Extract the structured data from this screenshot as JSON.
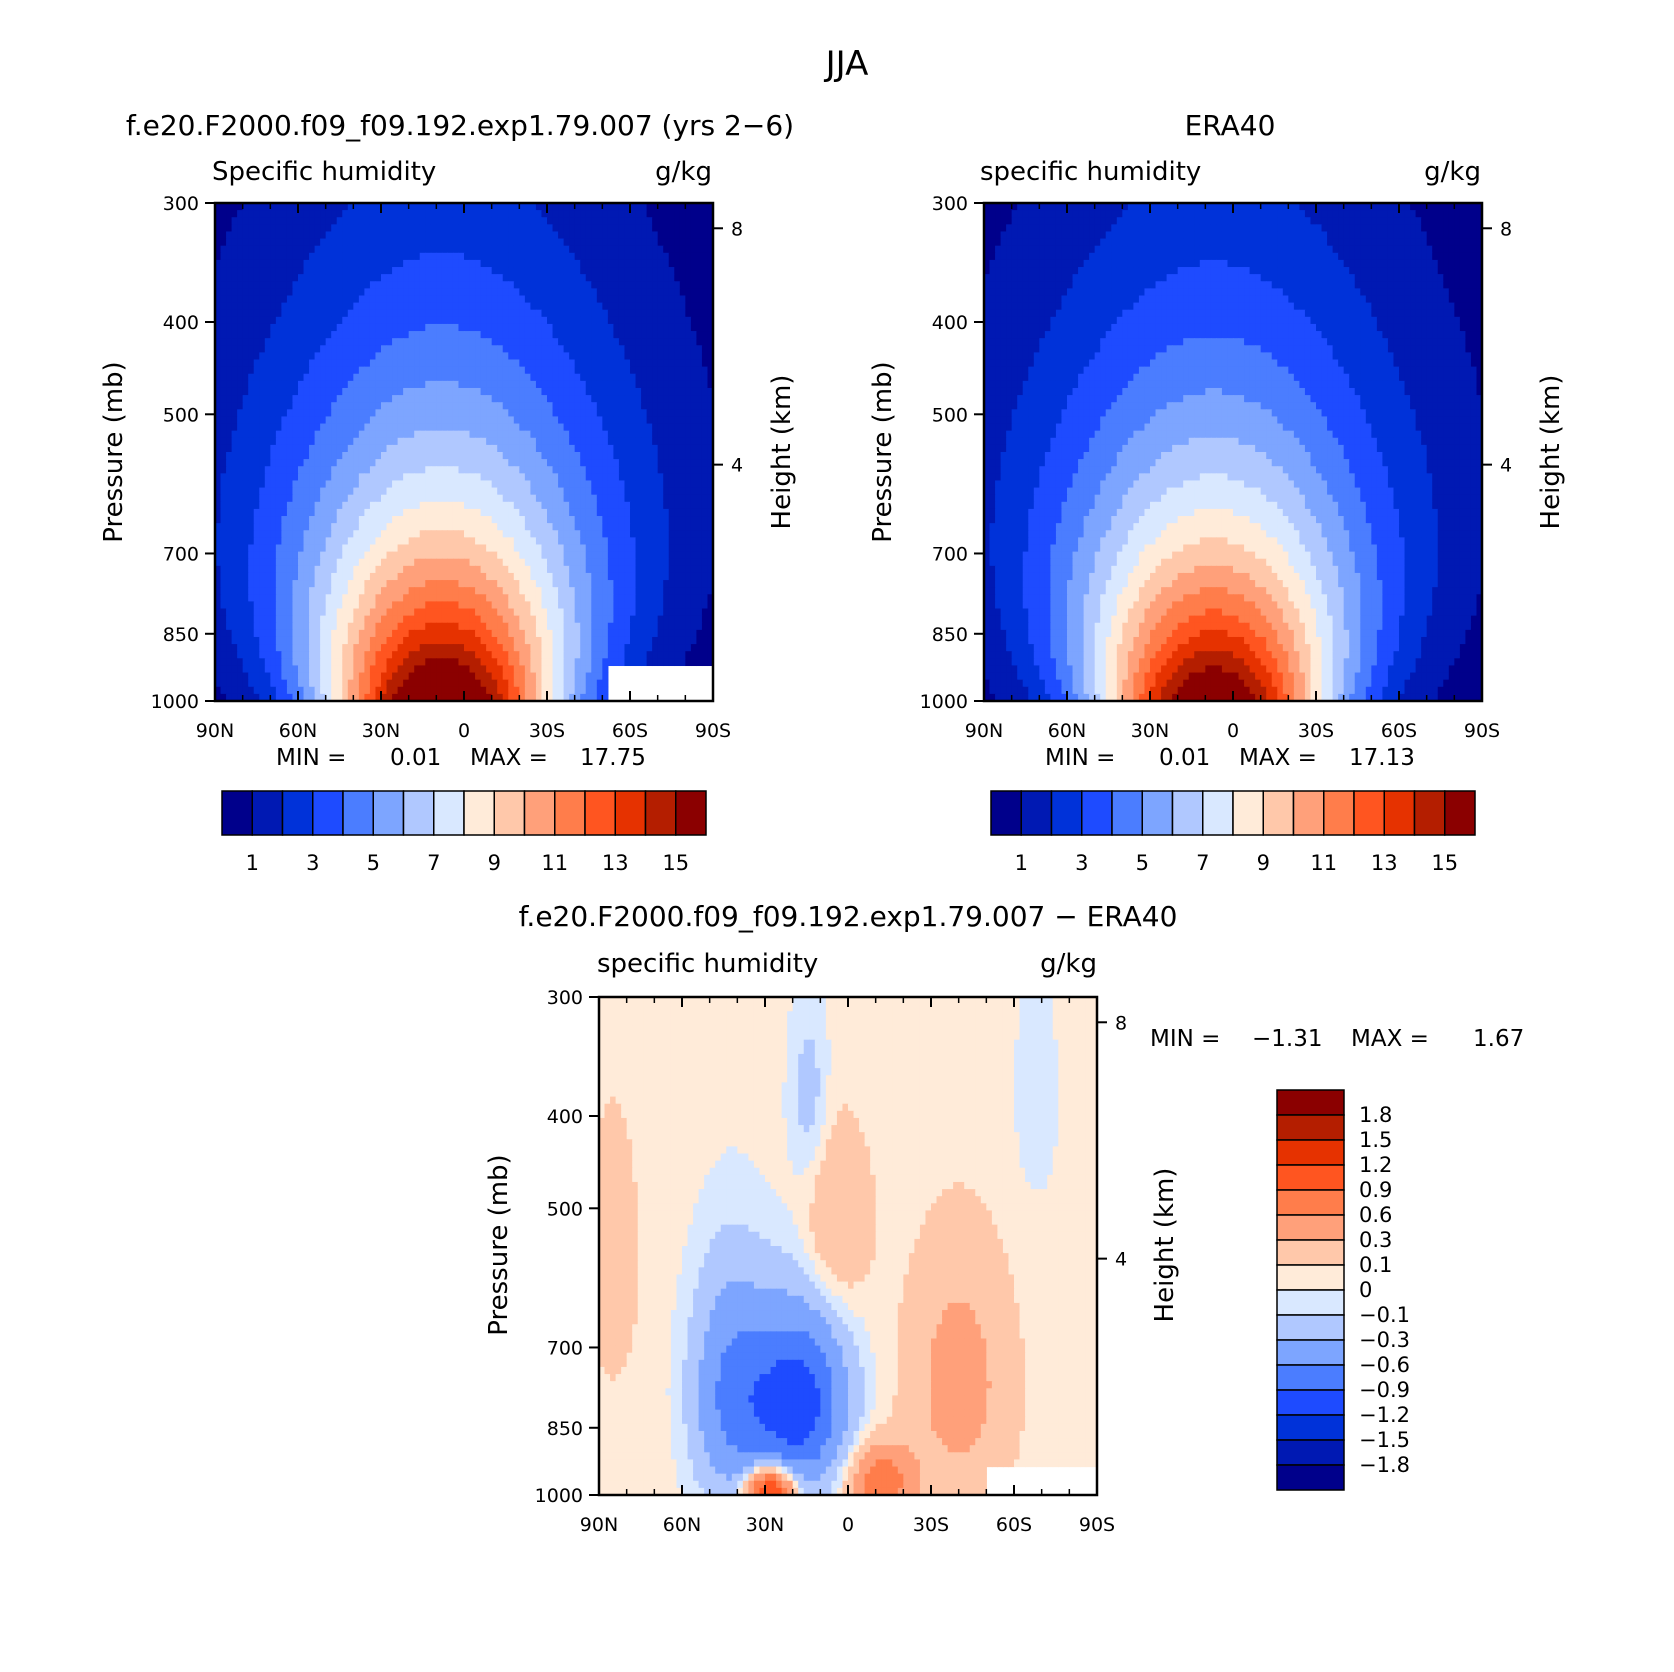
{
  "figure": {
    "season": "JJA",
    "colors": {
      "abs_scale": [
        "#00008b",
        "#0019b3",
        "#0032d9",
        "#1e4bff",
        "#4b7dff",
        "#7da5ff",
        "#b0c8ff",
        "#d9e8ff",
        "#ffebd9",
        "#ffc8aa",
        "#ffa07a",
        "#ff7d4b",
        "#ff5520",
        "#e63200",
        "#b41e00",
        "#8b0000"
      ],
      "diff_scale": [
        "#00008b",
        "#0019b3",
        "#0032d9",
        "#1e4bff",
        "#4b7dff",
        "#7da5ff",
        "#b0c8ff",
        "#d9e8ff",
        "#ffebd9",
        "#ffc8aa",
        "#ffa07a",
        "#ff7d4b",
        "#ff5520",
        "#e63200",
        "#b41e00",
        "#8b0000"
      ]
    }
  },
  "chart_data": [
    {
      "type": "heatmap",
      "title": "f.e20.F2000.f09_f09.192.exp1.79.007 (yrs 2−6)",
      "subtitle_left": "Specific humidity",
      "subtitle_right": "g/kg",
      "ylabel": "Pressure (mb)",
      "ylabel_right": "Height (km)",
      "x_ticks": [
        "90N",
        "60N",
        "30N",
        "0",
        "30S",
        "60S",
        "90S"
      ],
      "y_ticks": [
        "300",
        "400",
        "500",
        "700",
        "850",
        "1000"
      ],
      "y_right_ticks": [
        "8",
        "4"
      ],
      "xlim": [
        90,
        -90
      ],
      "ylim": [
        1000,
        300
      ],
      "levels": [
        1,
        2,
        3,
        4,
        5,
        6,
        7,
        8,
        9,
        10,
        11,
        12,
        13,
        14,
        15
      ],
      "colorbar_labels": [
        "1",
        "3",
        "5",
        "7",
        "9",
        "11",
        "13",
        "15"
      ],
      "min_label": "MIN =",
      "min_value": "0.01",
      "max_label": "MAX =",
      "max_value": "17.75",
      "peak": {
        "lat": 8,
        "value": 17.75
      },
      "surface_gap": {
        "lat_start": -52,
        "pressure_top": 925
      }
    },
    {
      "type": "heatmap",
      "title": "ERA40",
      "subtitle_left": "specific humidity",
      "subtitle_right": "g/kg",
      "ylabel": "Pressure (mb)",
      "ylabel_right": "Height (km)",
      "x_ticks": [
        "90N",
        "60N",
        "30N",
        "0",
        "30S",
        "60S",
        "90S"
      ],
      "y_ticks": [
        "300",
        "400",
        "500",
        "700",
        "850",
        "1000"
      ],
      "y_right_ticks": [
        "8",
        "4"
      ],
      "xlim": [
        90,
        -90
      ],
      "ylim": [
        1000,
        300
      ],
      "levels": [
        1,
        2,
        3,
        4,
        5,
        6,
        7,
        8,
        9,
        10,
        11,
        12,
        13,
        14,
        15
      ],
      "colorbar_labels": [
        "1",
        "3",
        "5",
        "7",
        "9",
        "11",
        "13",
        "15"
      ],
      "min_label": "MIN =",
      "min_value": "0.01",
      "max_label": "MAX =",
      "max_value": "17.13",
      "peak": {
        "lat": 7,
        "value": 17.13
      }
    },
    {
      "type": "heatmap",
      "title": "f.e20.F2000.f09_f09.192.exp1.79.007 − ERA40",
      "subtitle_left": "specific humidity",
      "subtitle_right": "g/kg",
      "ylabel": "Pressure (mb)",
      "ylabel_right": "Height (km)",
      "x_ticks": [
        "90N",
        "60N",
        "30N",
        "0",
        "30S",
        "60S",
        "90S"
      ],
      "y_ticks": [
        "300",
        "400",
        "500",
        "700",
        "850",
        "1000"
      ],
      "y_right_ticks": [
        "8",
        "4"
      ],
      "xlim": [
        90,
        -90
      ],
      "ylim": [
        1000,
        300
      ],
      "levels": [
        -1.8,
        -1.5,
        -1.2,
        -0.9,
        -0.6,
        -0.3,
        -0.1,
        0,
        0.1,
        0.3,
        0.6,
        0.9,
        1.2,
        1.5,
        1.8
      ],
      "colorbar_labels": [
        "1.8",
        "1.5",
        "1.2",
        "0.9",
        "0.6",
        "0.3",
        "0.1",
        "0",
        "−0.1",
        "−0.3",
        "−0.6",
        "−0.9",
        "−1.2",
        "−1.5",
        "−1.8"
      ],
      "min_label": "MIN =",
      "min_value": "−1.31",
      "max_label": "MAX =",
      "max_value": "1.67",
      "surface_gap": {
        "lat_start": -50,
        "pressure_top": 940
      }
    }
  ]
}
